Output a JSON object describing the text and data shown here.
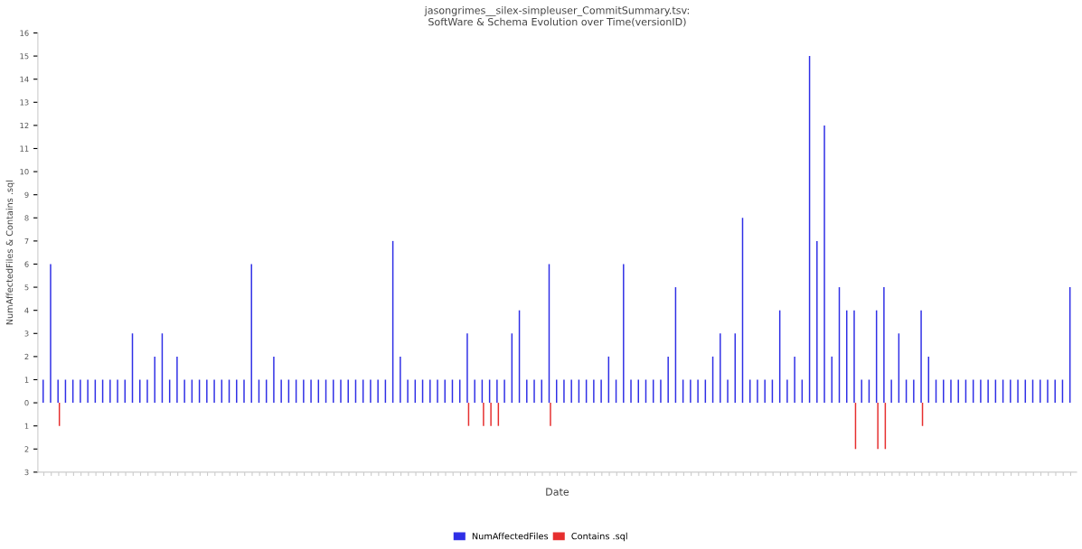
{
  "chart_data": {
    "type": "bar",
    "title": "jasongrimes__silex-simpleuser_CommitSummary.tsv:\nSoftWare & Schema Evolution over Time(versionID)",
    "xlabel": "Date",
    "ylabel": "NumAffectedFiles & Contains .sql",
    "categories": [
      null,
      null,
      null,
      null,
      null,
      null,
      null,
      null,
      null,
      null,
      null,
      null,
      null,
      null,
      null,
      null,
      null,
      null,
      null,
      null,
      null,
      null,
      null,
      null,
      null,
      null,
      null,
      null,
      null,
      null,
      null,
      null,
      null,
      null,
      null,
      null,
      null,
      null,
      null,
      null,
      null,
      null,
      null,
      null,
      null,
      null,
      null,
      null,
      null,
      null,
      null,
      null,
      null,
      null,
      null,
      null,
      null,
      null,
      null,
      null,
      null,
      null,
      null,
      null,
      null,
      null,
      null,
      null,
      null,
      null,
      null,
      null,
      null,
      null,
      null,
      null,
      null,
      null,
      null,
      null,
      null,
      null,
      null,
      null,
      null,
      null,
      null,
      null,
      null,
      null,
      null,
      null,
      null,
      null,
      null,
      null,
      null,
      null,
      null,
      null,
      null,
      null,
      null,
      null,
      null,
      null,
      null,
      null,
      null,
      null,
      null,
      null,
      null,
      null,
      null,
      null,
      null,
      null,
      null,
      null,
      null,
      null,
      null,
      null,
      null,
      null,
      null,
      null,
      null,
      null,
      null,
      null,
      null,
      null,
      null,
      null,
      null,
      null,
      null
    ],
    "series": [
      {
        "name": "NumAffectedFiles",
        "color": "#2e2ee6",
        "values": [
          1,
          6,
          1,
          1,
          1,
          1,
          1,
          1,
          1,
          1,
          1,
          1,
          3,
          1,
          1,
          2,
          3,
          1,
          2,
          1,
          1,
          1,
          1,
          1,
          1,
          1,
          1,
          1,
          6,
          1,
          1,
          2,
          1,
          1,
          1,
          1,
          1,
          1,
          1,
          1,
          1,
          1,
          1,
          1,
          1,
          1,
          1,
          7,
          2,
          1,
          1,
          1,
          1,
          1,
          1,
          1,
          1,
          3,
          1,
          1,
          1,
          1,
          1,
          3,
          4,
          1,
          1,
          1,
          6,
          1,
          1,
          1,
          1,
          1,
          1,
          1,
          2,
          1,
          6,
          1,
          1,
          1,
          1,
          1,
          2,
          5,
          1,
          1,
          1,
          1,
          2,
          3,
          1,
          3,
          8,
          1,
          1,
          1,
          1,
          4,
          1,
          2,
          1,
          15,
          7,
          12,
          2,
          5,
          4,
          4,
          1,
          1,
          4,
          5,
          1,
          3,
          1,
          1,
          4,
          2,
          1,
          1,
          1,
          1,
          1,
          1,
          1,
          1,
          1,
          1,
          1,
          1,
          1,
          1,
          1,
          1,
          1,
          1,
          5
        ]
      },
      {
        "name": "Contains .sql",
        "color": "#e62e2e",
        "values": [
          null,
          null,
          -1,
          null,
          null,
          null,
          null,
          null,
          null,
          null,
          null,
          null,
          null,
          null,
          null,
          null,
          null,
          null,
          null,
          null,
          null,
          null,
          null,
          null,
          null,
          null,
          null,
          null,
          null,
          null,
          null,
          null,
          null,
          null,
          null,
          null,
          null,
          null,
          null,
          null,
          null,
          null,
          null,
          null,
          null,
          null,
          null,
          null,
          null,
          null,
          null,
          null,
          null,
          null,
          null,
          null,
          null,
          -1,
          null,
          -1,
          -1,
          -1,
          null,
          null,
          null,
          null,
          null,
          null,
          -1,
          null,
          null,
          null,
          null,
          null,
          null,
          null,
          null,
          null,
          null,
          null,
          null,
          null,
          null,
          null,
          null,
          null,
          null,
          null,
          null,
          null,
          null,
          null,
          null,
          null,
          null,
          null,
          null,
          null,
          null,
          null,
          null,
          null,
          null,
          null,
          null,
          null,
          null,
          null,
          null,
          -2,
          null,
          null,
          -2,
          -2,
          null,
          null,
          null,
          null,
          -1,
          null,
          null,
          null,
          null,
          null,
          null,
          null,
          null,
          null,
          null,
          null,
          null,
          null,
          null,
          null,
          null,
          null,
          null,
          null,
          null
        ]
      }
    ],
    "ylim": [
      -3,
      16
    ],
    "yticks": [
      {
        "value": -3,
        "label": "3"
      },
      {
        "value": -2,
        "label": "2"
      },
      {
        "value": -1,
        "label": "1"
      },
      0,
      1,
      2,
      3,
      4,
      5,
      6,
      7,
      8,
      9,
      10,
      11,
      12,
      13,
      14,
      15,
      16
    ],
    "legend": "bottom",
    "grid": false
  }
}
